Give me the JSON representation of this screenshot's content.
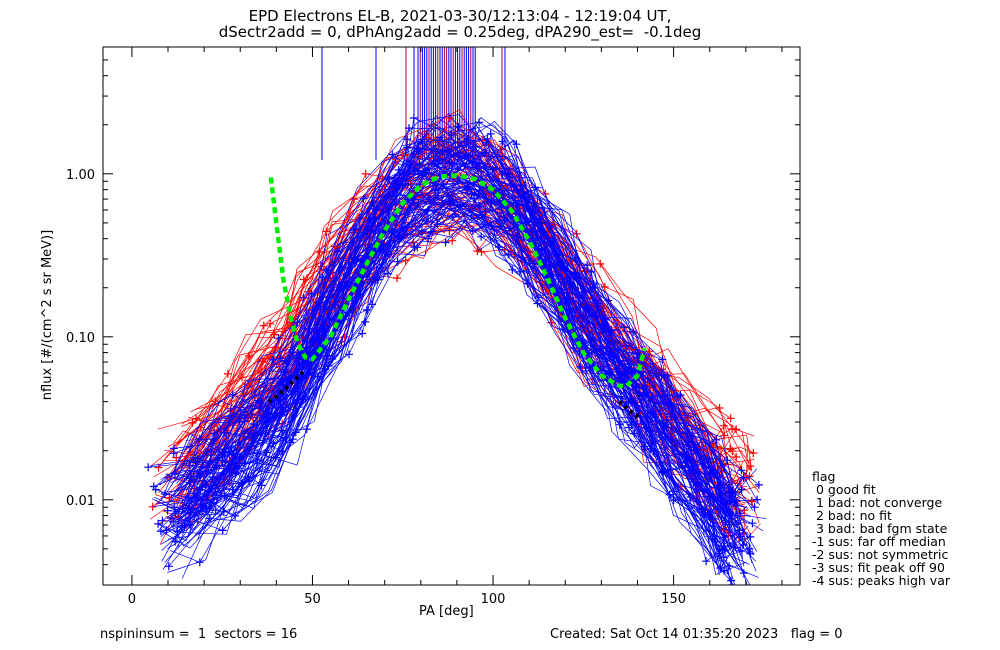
{
  "title_lines": [
    "EPD Electrons EL-B, 2021-03-30/12:13:04 - 12:19:04 UT,",
    "dSectr2add = 0, dPhAng2add = 0.25deg, dPA290_est=  -0.1deg"
  ],
  "footer": {
    "left": "nspininsum =  1  sectors = 16",
    "right": "Created: Sat Oct 14 01:35:20 2023   flag = 0"
  },
  "flag_legend": {
    "title": "flag",
    "items": [
      " 0 good fit",
      " 1 bad: not converge",
      " 2 bad: no fit",
      " 3 bad: bad fgm state",
      "-1 sus: far off median",
      "-2 sus: not symmetric",
      "-3 sus: fit peak off 90",
      "-4 sus: peaks high var"
    ]
  },
  "chart_data": {
    "type": "line",
    "xlabel": "PA [deg]",
    "ylabel": "nflux [#/(cm^2 s sr MeV)]",
    "xlim": [
      -8,
      185
    ],
    "ylim": [
      0.003,
      6.0
    ],
    "yscale": "log",
    "xticks": [
      0,
      50,
      100,
      150
    ],
    "xtick_labels": [
      "0",
      "50",
      "100",
      "150"
    ],
    "yticks": [
      0.01,
      0.1,
      1.0
    ],
    "ytick_labels": [
      "0.01",
      "0.10",
      "1.00"
    ],
    "grid": false,
    "series": [
      {
        "color": "#0000ff",
        "style": "thin lines with + markers, many overplotted traces",
        "x": [
          12,
          20,
          28,
          36,
          44,
          52,
          60,
          68,
          76,
          84,
          92,
          100,
          108,
          116,
          124,
          132,
          140,
          148,
          156,
          164,
          168
        ],
        "y": [
          0.008,
          0.012,
          0.018,
          0.025,
          0.045,
          0.1,
          0.22,
          0.42,
          0.72,
          0.9,
          0.95,
          0.85,
          0.55,
          0.3,
          0.15,
          0.075,
          0.045,
          0.025,
          0.015,
          0.008,
          0.006
        ]
      },
      {
        "color": "#ff0000",
        "style": "thin lines with + markers, many overplotted traces",
        "x": [
          12,
          20,
          28,
          36,
          44,
          52,
          60,
          68,
          76,
          84,
          92,
          100,
          108,
          116,
          124,
          132,
          140,
          148,
          156,
          164,
          168
        ],
        "y": [
          0.012,
          0.02,
          0.03,
          0.05,
          0.08,
          0.15,
          0.3,
          0.5,
          0.75,
          0.88,
          0.92,
          0.82,
          0.5,
          0.3,
          0.16,
          0.09,
          0.06,
          0.035,
          0.02,
          0.013,
          0.012
        ]
      },
      {
        "color": "#00ff00",
        "style": "thick dashed fit",
        "x": [
          38.5,
          40,
          42,
          44,
          46,
          48,
          50,
          55,
          60,
          65,
          70,
          75,
          80,
          85,
          90,
          95,
          100,
          105,
          110,
          115,
          120,
          125,
          130,
          135,
          137,
          140,
          142
        ],
        "y": [
          0.95,
          0.5,
          0.22,
          0.13,
          0.09,
          0.075,
          0.073,
          0.1,
          0.17,
          0.28,
          0.45,
          0.66,
          0.85,
          0.96,
          0.98,
          0.93,
          0.8,
          0.6,
          0.39,
          0.23,
          0.13,
          0.08,
          0.058,
          0.05,
          0.05,
          0.058,
          0.085
        ]
      },
      {
        "color": "#000000",
        "style": "thick dotted",
        "x": [
          38,
          40,
          43,
          46,
          48,
          135,
          138,
          141
        ],
        "y": [
          0.04,
          0.043,
          0.049,
          0.057,
          0.063,
          0.04,
          0.035,
          0.031
        ]
      }
    ]
  }
}
